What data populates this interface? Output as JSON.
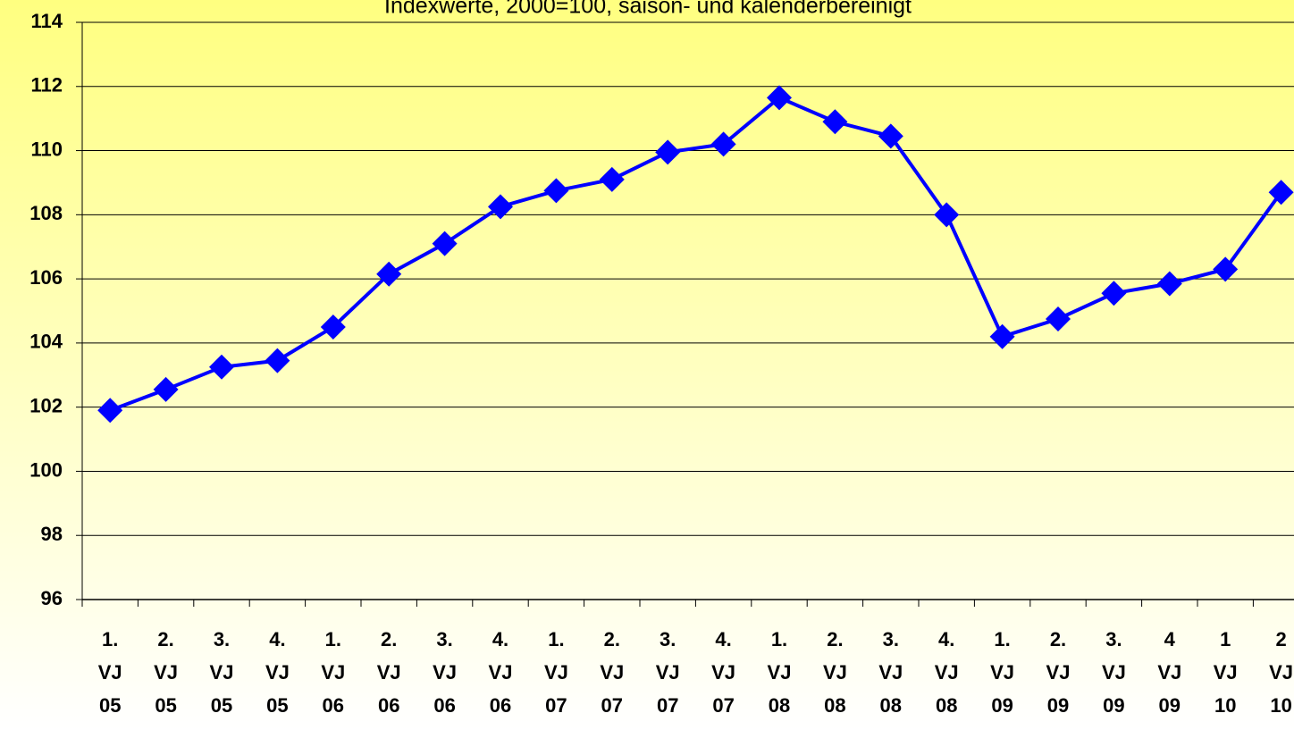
{
  "chart_data": {
    "type": "line",
    "subtitle": "Indexwerte, 2000=100, saison- und kalenderbereinigt",
    "categories": [
      [
        "1.",
        "VJ",
        "05"
      ],
      [
        "2.",
        "VJ",
        "05"
      ],
      [
        "3.",
        "VJ",
        "05"
      ],
      [
        "4.",
        "VJ",
        "05"
      ],
      [
        "1.",
        "VJ",
        "06"
      ],
      [
        "2.",
        "VJ",
        "06"
      ],
      [
        "3.",
        "VJ",
        "06"
      ],
      [
        "4.",
        "VJ",
        "06"
      ],
      [
        "1.",
        "VJ",
        "07"
      ],
      [
        "2.",
        "VJ",
        "07"
      ],
      [
        "3.",
        "VJ",
        "07"
      ],
      [
        "4.",
        "VJ",
        "07"
      ],
      [
        "1.",
        "VJ",
        "08"
      ],
      [
        "2.",
        "VJ",
        "08"
      ],
      [
        "3.",
        "VJ",
        "08"
      ],
      [
        "4.",
        "VJ",
        "08"
      ],
      [
        "1.",
        "VJ",
        "09"
      ],
      [
        "2.",
        "VJ",
        "09"
      ],
      [
        "3.",
        "VJ",
        "09"
      ],
      [
        "4",
        "VJ",
        "09"
      ],
      [
        "1",
        "VJ",
        "10"
      ],
      [
        "2",
        "VJ",
        "10"
      ]
    ],
    "series": [
      {
        "color": "#0000ff",
        "values": [
          101.9,
          102.55,
          103.25,
          103.45,
          104.5,
          106.15,
          107.1,
          108.25,
          108.75,
          109.1,
          109.95,
          110.2,
          111.65,
          110.9,
          110.45,
          108.0,
          104.2,
          104.75,
          105.55,
          105.85,
          106.3,
          108.7
        ]
      }
    ],
    "ylim": [
      96,
      114
    ],
    "yticks": [
      96,
      98,
      100,
      102,
      104,
      106,
      108,
      110,
      112,
      114
    ],
    "grid": true
  }
}
